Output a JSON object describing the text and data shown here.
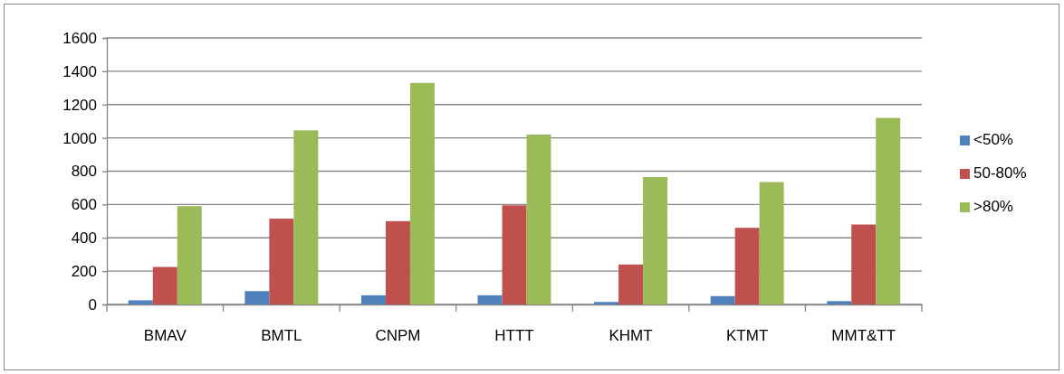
{
  "chart_data": {
    "type": "bar",
    "categories": [
      "BMAV",
      "BMTL",
      "CNPM",
      "HTTT",
      "KHMT",
      "KTMT",
      "MMT&TT"
    ],
    "series": [
      {
        "name": "<50%",
        "color": "#4f81bd",
        "values": [
          25,
          80,
          55,
          55,
          15,
          50,
          20
        ]
      },
      {
        "name": "50-80%",
        "color": "#c0504d",
        "values": [
          225,
          515,
          500,
          595,
          240,
          460,
          480
        ]
      },
      {
        "name": ">80%",
        "color": "#9bbb59",
        "values": [
          590,
          1045,
          1330,
          1020,
          765,
          735,
          1120
        ]
      }
    ],
    "ylim": [
      0,
      1600
    ],
    "yticks": [
      0,
      200,
      400,
      600,
      800,
      1000,
      1200,
      1400,
      1600
    ],
    "grid": "y",
    "legend": "right"
  }
}
